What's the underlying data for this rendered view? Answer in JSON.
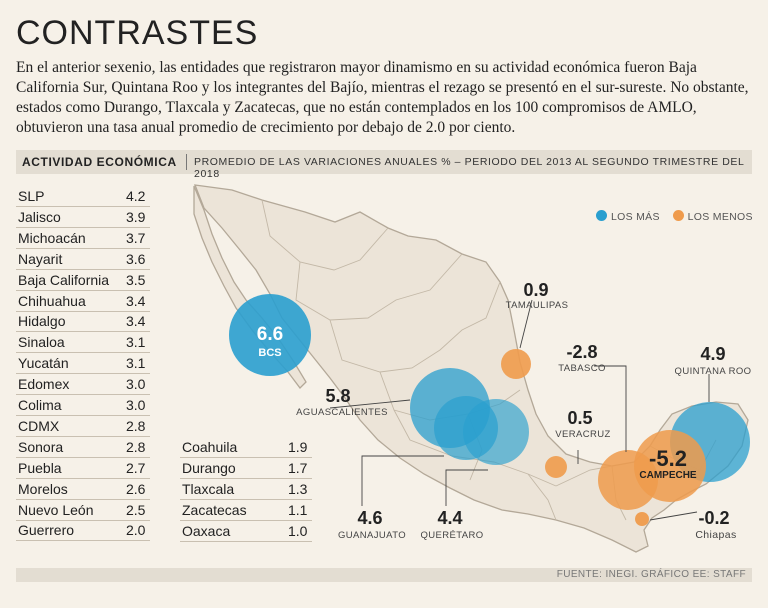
{
  "title": "CONTRASTES",
  "intro": "En el anterior sexenio, las entidades que registraron mayor dinamismo en su actividad económica fueron Baja California Sur, Quintana Roo y los integrantes del Bajío, mientras el rezago se presentó en el sur-sureste. No obstante, estados como Durango, Tlaxcala y Zacatecas, que no están contemplados en los 100 compromisos de AMLO, obtuvieron una tasa anual promedio de crecimiento por debajo de 2.0 por ciento.",
  "header": {
    "label": "ACTIVIDAD ECONÓMICA",
    "subtitle": "PROMEDIO DE LAS VARIACIONES ANUALES % – PERIODO DEL 2013 AL SEGUNDO TRIMESTRE DEL 2018"
  },
  "table_left": [
    {
      "state": "SLP",
      "value": "4.2"
    },
    {
      "state": "Jalisco",
      "value": "3.9"
    },
    {
      "state": "Michoacán",
      "value": "3.7"
    },
    {
      "state": "Nayarit",
      "value": "3.6"
    },
    {
      "state": "Baja California",
      "value": "3.5"
    },
    {
      "state": "Chihuahua",
      "value": "3.4"
    },
    {
      "state": "Hidalgo",
      "value": "3.4"
    },
    {
      "state": "Sinaloa",
      "value": "3.1"
    },
    {
      "state": "Yucatán",
      "value": "3.1"
    },
    {
      "state": "Edomex",
      "value": "3.0"
    },
    {
      "state": "Colima",
      "value": "3.0"
    },
    {
      "state": "CDMX",
      "value": "2.8"
    },
    {
      "state": "Sonora",
      "value": "2.8"
    },
    {
      "state": "Puebla",
      "value": "2.7"
    },
    {
      "state": "Morelos",
      "value": "2.6"
    },
    {
      "state": "Nuevo León",
      "value": "2.5"
    },
    {
      "state": "Guerrero",
      "value": "2.0"
    }
  ],
  "table_right": [
    {
      "state": "Coahuila",
      "value": "1.9"
    },
    {
      "state": "Durango",
      "value": "1.7"
    },
    {
      "state": "Tlaxcala",
      "value": "1.3"
    },
    {
      "state": "Zacatecas",
      "value": "1.1"
    },
    {
      "state": "Oaxaca",
      "value": "1.0"
    }
  ],
  "legend": {
    "most": "LOS MÁS",
    "least": "LOS MENOS",
    "most_color": "#2a9fcf",
    "least_color": "#ef9b4c"
  },
  "map": {
    "bcs": {
      "value": "6.6",
      "label": "BCS"
    },
    "aguascalientes": {
      "value": "5.8",
      "label": "AGUASCALIENTES"
    },
    "tamaulipas": {
      "value": "0.9",
      "label": "TAMAULIPAS"
    },
    "tabasco": {
      "value": "-2.8",
      "label": "TABASCO"
    },
    "quintana_roo": {
      "value": "4.9",
      "label": "QUINTANA ROO"
    },
    "veracruz": {
      "value": "0.5",
      "label": "VERACRUZ"
    },
    "campeche": {
      "value": "-5.2",
      "label": "CAMPECHE"
    },
    "guanajuato": {
      "value": "4.6",
      "label": "GUANAJUATO"
    },
    "queretaro": {
      "value": "4.4",
      "label": "QUERÉTARO"
    },
    "chiapas": {
      "value": "-0.2",
      "label": "Chiapas"
    }
  },
  "footer": "FUENTE: INEGI. GRÁFICO EE: STAFF"
}
